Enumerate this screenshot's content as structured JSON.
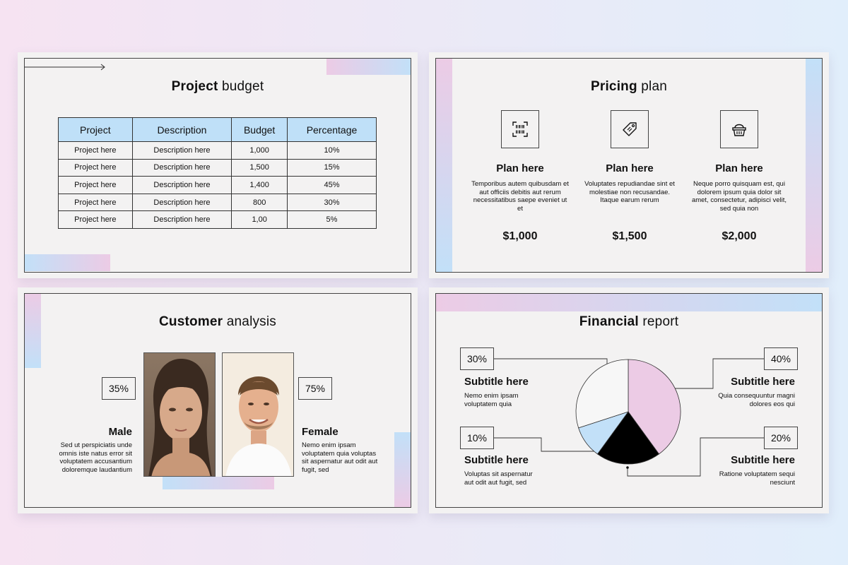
{
  "colors": {
    "pink": "#eccbe5",
    "light_blue": "#c2e0f8",
    "slide_bg": "#f3f2f2",
    "black": "#000000"
  },
  "budget": {
    "title_bold": "Project",
    "title_rest": "budget",
    "headers": [
      "Project",
      "Description",
      "Budget",
      "Percentage"
    ],
    "rows": [
      [
        "Project here",
        "Description here",
        "1,000",
        "10%"
      ],
      [
        "Project here",
        "Description here",
        "1,500",
        "15%"
      ],
      [
        "Project here",
        "Description here",
        "1,400",
        "45%"
      ],
      [
        "Project here",
        "Description here",
        "800",
        "30%"
      ],
      [
        "Project here",
        "Description here",
        "1,00",
        "5%"
      ]
    ]
  },
  "pricing": {
    "title_bold": "Pricing",
    "title_rest": "plan",
    "plans": [
      {
        "icon": "barcode-scan-icon",
        "name": "Plan here",
        "desc": "Temporibus autem quibusdam et aut officiis debitis aut rerum necessitatibus saepe eveniet ut et",
        "price": "$1,000"
      },
      {
        "icon": "price-tag-icon",
        "name": "Plan here",
        "desc": "Voluptates repudiandae sint et molestiae non recusandae. Itaque earum rerum",
        "price": "$1,500"
      },
      {
        "icon": "shopping-basket-icon",
        "name": "Plan here",
        "desc": "Neque porro quisquam est, qui dolorem ipsum quia dolor sit amet, consectetur, adipisci velit, sed quia non",
        "price": "$2,000"
      }
    ]
  },
  "customer": {
    "title_bold": "Customer",
    "title_rest": "analysis",
    "male": {
      "percent": "35%",
      "label": "Male",
      "desc": "Sed ut perspiciatis unde omnis iste natus error sit voluptatem accusantium doloremque laudantium"
    },
    "female": {
      "percent": "75%",
      "label": "Female",
      "desc": "Nemo enim ipsam voluptatem quia voluptas sit aspernatur aut odit aut fugit, sed"
    }
  },
  "financial": {
    "title_bold": "Financial",
    "title_rest": "report",
    "items": [
      {
        "percent": "30%",
        "subtitle": "Subtitle here",
        "desc": "Nemo enim ipsam voluptatem quia"
      },
      {
        "percent": "10%",
        "subtitle": "Subtitle here",
        "desc": "Voluptas sit aspernatur aut odit aut fugit, sed"
      },
      {
        "percent": "40%",
        "subtitle": "Subtitle here",
        "desc": "Quia consequuntur magni dolores eos qui"
      },
      {
        "percent": "20%",
        "subtitle": "Subtitle here",
        "desc": "Ratione voluptatem sequi nesciunt"
      }
    ]
  },
  "chart_data": {
    "type": "pie",
    "slices": [
      {
        "value": 40,
        "color": "#eccbe5"
      },
      {
        "value": 20,
        "color": "#000000"
      },
      {
        "value": 10,
        "color": "#c2e0f8"
      },
      {
        "value": 30,
        "color": "#f7f7f7"
      }
    ]
  }
}
